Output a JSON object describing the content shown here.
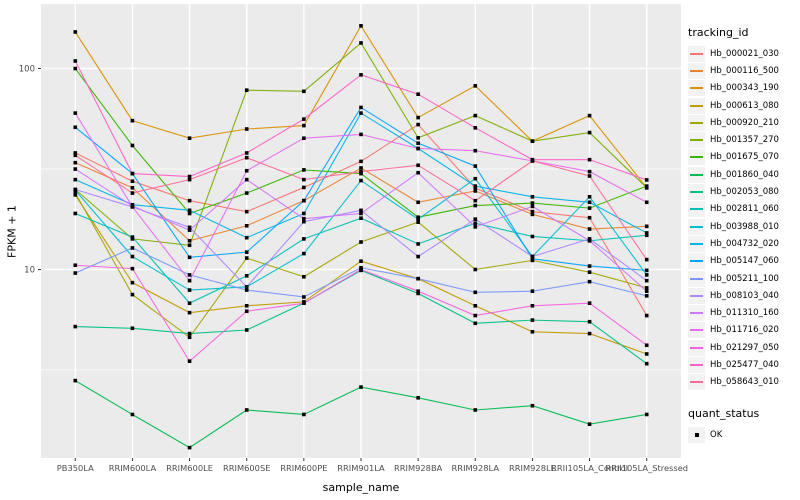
{
  "figure": {
    "background": "#FFFFFF",
    "panel_background": "#EBEBEB",
    "grid_color": "#FFFFFF",
    "tick_color": "#333333",
    "tick_label_color": "#4D4D4D",
    "axis_title_color": "#000000",
    "legend_key_fill": "#F2F2F2"
  },
  "axes": {
    "xlabel": "sample_name",
    "ylabel": "FPKM + 1",
    "y_tick_labels": [
      "100",
      "10"
    ]
  },
  "legend": {
    "series_title": "tracking_id",
    "point_title": "quant_status",
    "point_item_label": "OK"
  },
  "chart_data": {
    "type": "line",
    "title": "",
    "xlabel": "sample_name",
    "ylabel": "FPKM + 1",
    "y_scale": "log10",
    "y_ticks": [
      10,
      100
    ],
    "y_minor_ticks": [
      3.162,
      31.62
    ],
    "ylim": [
      1.15,
      195
    ],
    "grid": true,
    "legend_position": "right",
    "point_marker": {
      "shape": "square",
      "color": "#000000",
      "size": 3.6,
      "label": "OK"
    },
    "categories": [
      "PB350LA",
      "RRIM600LA",
      "RRIM600LE",
      "RRIM600SE",
      "RRIM600PE",
      "RRIM901LA",
      "RRIM928BA",
      "RRIM928LA",
      "RRIM928LE",
      "RRII105LA_Control",
      "RRII105LA_Stressed"
    ],
    "series": [
      {
        "name": "Hb_000021_030",
        "color": "#F8766D",
        "values": [
          38,
          27.5,
          22,
          19.4,
          25.6,
          34.5,
          52.6,
          25.4,
          19.4,
          18.1,
          5.9
        ]
      },
      {
        "name": "Hb_000116_500",
        "color": "#EA8331",
        "values": [
          34,
          25.5,
          13.9,
          16.5,
          22,
          32,
          21.6,
          24.6,
          18.8,
          15.9,
          16.4
        ]
      },
      {
        "name": "Hb_000343_190",
        "color": "#D89000",
        "values": [
          152,
          55,
          45,
          50,
          52,
          163,
          57,
          82,
          43.5,
          58.3,
          25.5
        ]
      },
      {
        "name": "Hb_000613_080",
        "color": "#C09B00",
        "values": [
          23.5,
          8.6,
          6.1,
          6.6,
          6.9,
          11,
          9,
          6.6,
          4.9,
          4.8,
          3.8
        ]
      },
      {
        "name": "Hb_000920_210",
        "color": "#A3A500",
        "values": [
          24,
          7.5,
          4.6,
          11.4,
          9.2,
          13.7,
          17.2,
          10,
          11.1,
          9.7,
          8.1
        ]
      },
      {
        "name": "Hb_001357_270",
        "color": "#7CAE00",
        "values": [
          25,
          14.2,
          13.2,
          78,
          77,
          134,
          45.2,
          58.3,
          43.5,
          48,
          25.5
        ]
      },
      {
        "name": "Hb_001675_070",
        "color": "#39B600",
        "values": [
          100,
          41.4,
          19,
          24,
          31.3,
          30,
          18.2,
          20.8,
          21.4,
          20.2,
          26
        ]
      },
      {
        "name": "Hb_001860_040",
        "color": "#00BB4E",
        "values": [
          2.8,
          1.9,
          1.3,
          2.0,
          1.9,
          2.6,
          2.3,
          2.0,
          2.1,
          1.7,
          1.9
        ]
      },
      {
        "name": "Hb_002053_080",
        "color": "#00C087",
        "values": [
          5.2,
          5.1,
          4.8,
          5.0,
          6.8,
          9.9,
          7.6,
          5.4,
          5.6,
          5.5,
          3.4
        ]
      },
      {
        "name": "Hb_002811_060",
        "color": "#00C0B2",
        "values": [
          19,
          14.5,
          6.8,
          9.3,
          14.2,
          18,
          13.4,
          17,
          14.6,
          13.9,
          14.8
        ]
      },
      {
        "name": "Hb_003988_010",
        "color": "#00BDD0",
        "values": [
          24.8,
          11.6,
          7.9,
          8.2,
          12,
          27.7,
          17.8,
          28.3,
          11.6,
          23,
          9.4
        ]
      },
      {
        "name": "Hb_004732_020",
        "color": "#00B4E7",
        "values": [
          28,
          21,
          19.7,
          14.4,
          19,
          60,
          40,
          26,
          23,
          21.6,
          15.2
        ]
      },
      {
        "name": "Hb_005147_060",
        "color": "#00A5FF",
        "values": [
          51,
          30,
          11.5,
          12.2,
          22,
          64,
          42.5,
          32.7,
          11.3,
          10.4,
          9.9
        ]
      },
      {
        "name": "Hb_005211_100",
        "color": "#7997FF",
        "values": [
          9.6,
          12.8,
          9.4,
          7.9,
          7.3,
          10.2,
          9,
          7.7,
          7.8,
          8.7,
          7.4
        ]
      },
      {
        "name": "Hb_008103_040",
        "color": "#AC88FF",
        "values": [
          25,
          20.5,
          16.2,
          8.2,
          17.3,
          19.7,
          11.6,
          17.8,
          11.6,
          14.2,
          8.8
        ]
      },
      {
        "name": "Hb_011310_160",
        "color": "#CF78FF",
        "values": [
          31.6,
          20.7,
          15.7,
          28,
          17.9,
          19,
          30.3,
          16.3,
          20.6,
          13.9,
          7.8
        ]
      },
      {
        "name": "Hb_011716_020",
        "color": "#E76BF3",
        "values": [
          60,
          20.5,
          8.8,
          31,
          45,
          47,
          40,
          39,
          34.7,
          30.7,
          21.6
        ]
      },
      {
        "name": "Hb_021297_050",
        "color": "#F763E0",
        "values": [
          10.5,
          10.1,
          3.5,
          6.2,
          6.8,
          10,
          7.8,
          5.9,
          6.6,
          6.8,
          4.2
        ]
      },
      {
        "name": "Hb_025477_040",
        "color": "#FF61C9",
        "values": [
          109,
          30,
          29,
          38,
          56,
          93,
          74.5,
          50.7,
          35.2,
          35.2,
          27.9
        ]
      },
      {
        "name": "Hb_058643_010",
        "color": "#FF6A98",
        "values": [
          37,
          24,
          28,
          36,
          28,
          30.7,
          33,
          22,
          34.7,
          29.2,
          11.2
        ]
      }
    ]
  }
}
